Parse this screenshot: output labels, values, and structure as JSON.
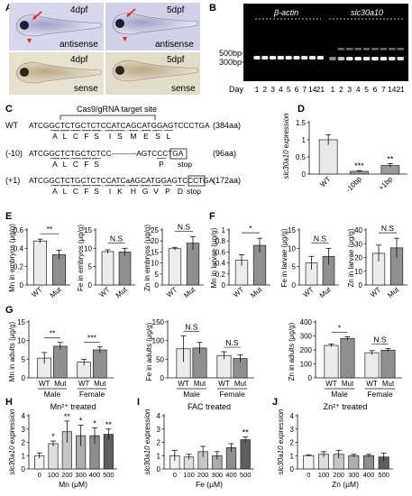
{
  "panel_letters": [
    "A",
    "B",
    "C",
    "D",
    "E",
    "F",
    "G",
    "H",
    "I",
    "J"
  ],
  "panelA": {
    "tiles": [
      {
        "stage": "4dpf",
        "probe": "antisense"
      },
      {
        "stage": "5dpf",
        "probe": "antisense"
      },
      {
        "stage": "4dpf",
        "probe": "sense"
      },
      {
        "stage": "5dpf",
        "probe": "sense"
      }
    ]
  },
  "panelB": {
    "markers": [
      "500bp",
      "300bp"
    ],
    "genes": [
      "β-actin",
      "slc30a10"
    ],
    "day_label": "Day",
    "lanes": [
      "1",
      "2",
      "3",
      "4",
      "5",
      "6",
      "7",
      "14",
      "21"
    ]
  },
  "panelC": {
    "title": "Cas9/gRNA target site",
    "rows": [
      {
        "tag": "WT",
        "seq": "ATCGGCTCTGCTCTCCATCAGCATGGAGTCCCTGA",
        "aa": [
          "A",
          "L",
          "C",
          "F",
          "S",
          "I",
          "S",
          "M",
          "E",
          "S",
          "L"
        ],
        "len": "(384aa)"
      },
      {
        "tag": "(-10)",
        "seq": "ATCGGCTCTGCTCTCC----------AGTCCCTGA",
        "aa": [
          "A",
          "L",
          "C",
          "F",
          "S",
          "P",
          "stop"
        ],
        "len": "(96aa)",
        "stop_codon": "TGA"
      },
      {
        "tag": "(+1)",
        "seq": "ATCGGCTCTGCTCTCCATCaAGCATGGAGTCCCTGA",
        "aa": [
          "A",
          "L",
          "C",
          "F",
          "S",
          "I",
          "K",
          "H",
          "G",
          "V",
          "P",
          "D",
          "stop"
        ],
        "len": "(172aa)",
        "stop_codon": "TGA"
      }
    ]
  },
  "chart_data": [
    {
      "panel": "D",
      "type": "bar",
      "ylabel": "slc30a10 expression",
      "ylim": [
        0,
        1.5
      ],
      "yticks": [
        0,
        0.5,
        1.0,
        1.5
      ],
      "categories": [
        "WT",
        "-10bp",
        "+1bp"
      ],
      "values": [
        1.0,
        0.08,
        0.25
      ],
      "errors": [
        0.15,
        0.02,
        0.05
      ],
      "sig": [
        "",
        "***",
        "**"
      ]
    },
    {
      "panel": "E",
      "type": "bar",
      "ylabel": "Mn in embryos (μg/g)",
      "ylim": [
        0,
        0.6
      ],
      "yticks": [
        0,
        0.2,
        0.4,
        0.6
      ],
      "categories": [
        "WT",
        "Mut"
      ],
      "values": [
        0.48,
        0.33
      ],
      "errors": [
        0.02,
        0.05
      ],
      "sig": "**"
    },
    {
      "panel": "E",
      "type": "bar",
      "ylabel": "Fe in embryos (μg/g)",
      "ylim": [
        0,
        15
      ],
      "yticks": [
        0,
        5,
        10,
        15
      ],
      "categories": [
        "WT",
        "Mut"
      ],
      "values": [
        9.1,
        9.0
      ],
      "errors": [
        0.5,
        1.0
      ],
      "sig": "N.S"
    },
    {
      "panel": "E",
      "type": "bar",
      "ylabel": "Zn in embryos (μg/g)",
      "ylim": [
        0,
        25
      ],
      "yticks": [
        0,
        5,
        10,
        15,
        20,
        25
      ],
      "categories": [
        "WT",
        "Mut"
      ],
      "values": [
        16.5,
        19.0
      ],
      "errors": [
        0.6,
        3.0
      ],
      "sig": "N.S"
    },
    {
      "panel": "F",
      "type": "bar",
      "ylabel": "Mn in larvae (μg/g)",
      "ylim": [
        0,
        1.0
      ],
      "yticks": [
        0,
        0.2,
        0.4,
        0.6,
        0.8,
        1.0
      ],
      "categories": [
        "WT",
        "Mut"
      ],
      "values": [
        0.45,
        0.72
      ],
      "errors": [
        0.1,
        0.13
      ],
      "sig": "*"
    },
    {
      "panel": "F",
      "type": "bar",
      "ylabel": "Fe in larvae (μg/g)",
      "ylim": [
        0,
        15
      ],
      "yticks": [
        0,
        5,
        10,
        15
      ],
      "categories": [
        "WT",
        "Mut"
      ],
      "values": [
        6.0,
        7.8
      ],
      "errors": [
        1.8,
        2.2
      ],
      "sig": "N.S"
    },
    {
      "panel": "F",
      "type": "bar",
      "ylabel": "Zn in larvae (μg/g)",
      "ylim": [
        0,
        40
      ],
      "yticks": [
        0,
        10,
        20,
        30,
        40
      ],
      "categories": [
        "WT",
        "Mut"
      ],
      "values": [
        23,
        27
      ],
      "errors": [
        6,
        7
      ],
      "sig": "N.S"
    },
    {
      "panel": "G",
      "type": "bar",
      "ylabel": "Mn in adults (μg/g)",
      "ylim": [
        0,
        15
      ],
      "yticks": [
        0,
        5,
        10,
        15
      ],
      "groups": [
        "Male",
        "Female"
      ],
      "categories": [
        "WT",
        "Mut",
        "WT",
        "Mut"
      ],
      "values": [
        5.3,
        8.5,
        4.2,
        7.5
      ],
      "errors": [
        1.5,
        1.0,
        0.8,
        0.8
      ],
      "sig": [
        "**",
        "***"
      ]
    },
    {
      "panel": "G",
      "type": "bar",
      "ylabel": "Fe in adults (μg/g)",
      "ylim": [
        0,
        150
      ],
      "yticks": [
        0,
        50,
        100,
        150
      ],
      "groups": [
        "Male",
        "Female"
      ],
      "categories": [
        "WT",
        "Mut",
        "WT",
        "Mut"
      ],
      "values": [
        78,
        80,
        60,
        52
      ],
      "errors": [
        35,
        15,
        10,
        10
      ],
      "sig": [
        "N.S",
        "N.S"
      ]
    },
    {
      "panel": "G",
      "type": "bar",
      "ylabel": "Zn in adults (μg/g)",
      "ylim": [
        0,
        400
      ],
      "yticks": [
        0,
        100,
        200,
        300,
        400
      ],
      "groups": [
        "Male",
        "Female"
      ],
      "categories": [
        "WT",
        "Mut",
        "WT",
        "Mut"
      ],
      "values": [
        232,
        282,
        180,
        198
      ],
      "errors": [
        10,
        12,
        15,
        12
      ],
      "sig": [
        "*",
        "N.S"
      ]
    },
    {
      "panel": "H",
      "type": "bar",
      "title": "Mn²⁺ treated",
      "xlabel": "Mn (μM)",
      "ylabel": "slc30a10 expression",
      "ylim": [
        0,
        4
      ],
      "yticks": [
        0,
        1,
        2,
        3,
        4
      ],
      "categories": [
        "0",
        "100",
        "200",
        "300",
        "400",
        "500"
      ],
      "values": [
        1.0,
        1.9,
        2.8,
        2.5,
        2.5,
        2.6
      ],
      "errors": [
        0.2,
        0.2,
        0.8,
        0.8,
        0.6,
        0.4
      ],
      "sig": [
        "",
        "*",
        "**",
        "*",
        "*",
        "**"
      ]
    },
    {
      "panel": "I",
      "type": "bar",
      "title": "FAC treated",
      "xlabel": "Fe (μM)",
      "ylabel": "slc30a10 expression",
      "ylim": [
        0,
        4
      ],
      "yticks": [
        0,
        1,
        2,
        3,
        4
      ],
      "categories": [
        "0",
        "100",
        "200",
        "300",
        "400",
        "500"
      ],
      "values": [
        1.0,
        0.9,
        1.3,
        1.0,
        1.6,
        2.2
      ],
      "errors": [
        0.4,
        0.2,
        0.4,
        0.3,
        0.3,
        0.2
      ],
      "sig": [
        "",
        "",
        "",
        "",
        "",
        "**"
      ]
    },
    {
      "panel": "J",
      "type": "bar",
      "title": "Zn²⁺ treated",
      "xlabel": "Zn (μM)",
      "ylabel": "slc30a10 expression",
      "ylim": [
        0,
        4
      ],
      "yticks": [
        0,
        1,
        2,
        3,
        4
      ],
      "categories": [
        "0",
        "100",
        "200",
        "300",
        "400",
        "500"
      ],
      "values": [
        1.0,
        1.1,
        1.1,
        1.0,
        1.0,
        0.9
      ],
      "errors": [
        0.05,
        0.2,
        0.3,
        0.1,
        0.1,
        0.3
      ],
      "sig": [
        "",
        "",
        "",
        "",
        "",
        ""
      ]
    }
  ]
}
